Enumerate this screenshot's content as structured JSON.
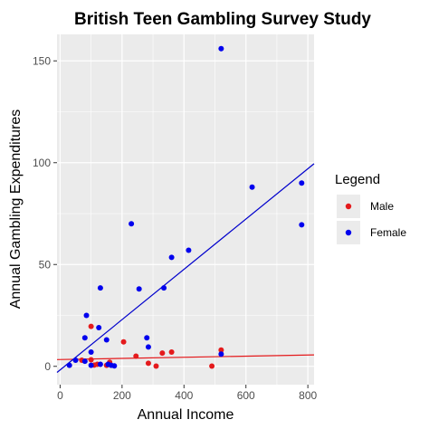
{
  "chart_data": {
    "type": "scatter",
    "title": "British Teen Gambling Survey Study",
    "xlabel": "Annual Income",
    "ylabel": "Annual Gambling Expenditures",
    "xlim": [
      -10,
      820
    ],
    "ylim": [
      -9,
      163
    ],
    "x_ticks": [
      0,
      200,
      400,
      600,
      800
    ],
    "y_ticks": [
      0,
      50,
      100,
      150
    ],
    "grid": true,
    "legend": {
      "title": "Legend",
      "placement": "right",
      "entries": [
        {
          "label": "Male",
          "color": "#e41a1c"
        },
        {
          "label": "Female",
          "color": "#0000ee"
        }
      ]
    },
    "series": [
      {
        "name": "Male",
        "color": "#e41a1c",
        "points": [
          {
            "x": 100,
            "y": 19.6
          },
          {
            "x": 100,
            "y": 3.2
          },
          {
            "x": 110,
            "y": 0.6
          },
          {
            "x": 120,
            "y": 1.0
          },
          {
            "x": 150,
            "y": 0.5
          },
          {
            "x": 160,
            "y": 2.0
          },
          {
            "x": 205,
            "y": 12.0
          },
          {
            "x": 245,
            "y": 5.0
          },
          {
            "x": 285,
            "y": 1.5
          },
          {
            "x": 310,
            "y": 0.1
          },
          {
            "x": 330,
            "y": 6.5
          },
          {
            "x": 360,
            "y": 7.0
          },
          {
            "x": 490,
            "y": 0.1
          },
          {
            "x": 520,
            "y": 8.0
          },
          {
            "x": 70,
            "y": 3.0
          }
        ]
      },
      {
        "name": "Female",
        "color": "#0000ee",
        "points": [
          {
            "x": 30,
            "y": 0.5
          },
          {
            "x": 50,
            "y": 3.0
          },
          {
            "x": 80,
            "y": 2.5
          },
          {
            "x": 80,
            "y": 14.0
          },
          {
            "x": 85,
            "y": 25.0
          },
          {
            "x": 100,
            "y": 7.0
          },
          {
            "x": 100,
            "y": 0.5
          },
          {
            "x": 125,
            "y": 19.0
          },
          {
            "x": 130,
            "y": 38.5
          },
          {
            "x": 130,
            "y": 1.0
          },
          {
            "x": 150,
            "y": 13.0
          },
          {
            "x": 155,
            "y": 1.0
          },
          {
            "x": 165,
            "y": 0.5
          },
          {
            "x": 175,
            "y": 0.2
          },
          {
            "x": 230,
            "y": 70.0
          },
          {
            "x": 255,
            "y": 38.0
          },
          {
            "x": 280,
            "y": 14.0
          },
          {
            "x": 285,
            "y": 9.5
          },
          {
            "x": 335,
            "y": 38.5
          },
          {
            "x": 360,
            "y": 53.5
          },
          {
            "x": 415,
            "y": 57.0
          },
          {
            "x": 520,
            "y": 156.0
          },
          {
            "x": 520,
            "y": 6.0
          },
          {
            "x": 620,
            "y": 88.0
          },
          {
            "x": 780,
            "y": 90.0
          },
          {
            "x": 780,
            "y": 69.5
          }
        ]
      }
    ],
    "fit_lines": [
      {
        "series": "Male",
        "color": "#e41a1c",
        "x": [
          -10,
          820
        ],
        "y": [
          3.3,
          5.6
        ]
      },
      {
        "series": "Female",
        "color": "#0000cc",
        "x": [
          -10,
          820
        ],
        "y": [
          -3.0,
          99.5
        ]
      }
    ]
  }
}
